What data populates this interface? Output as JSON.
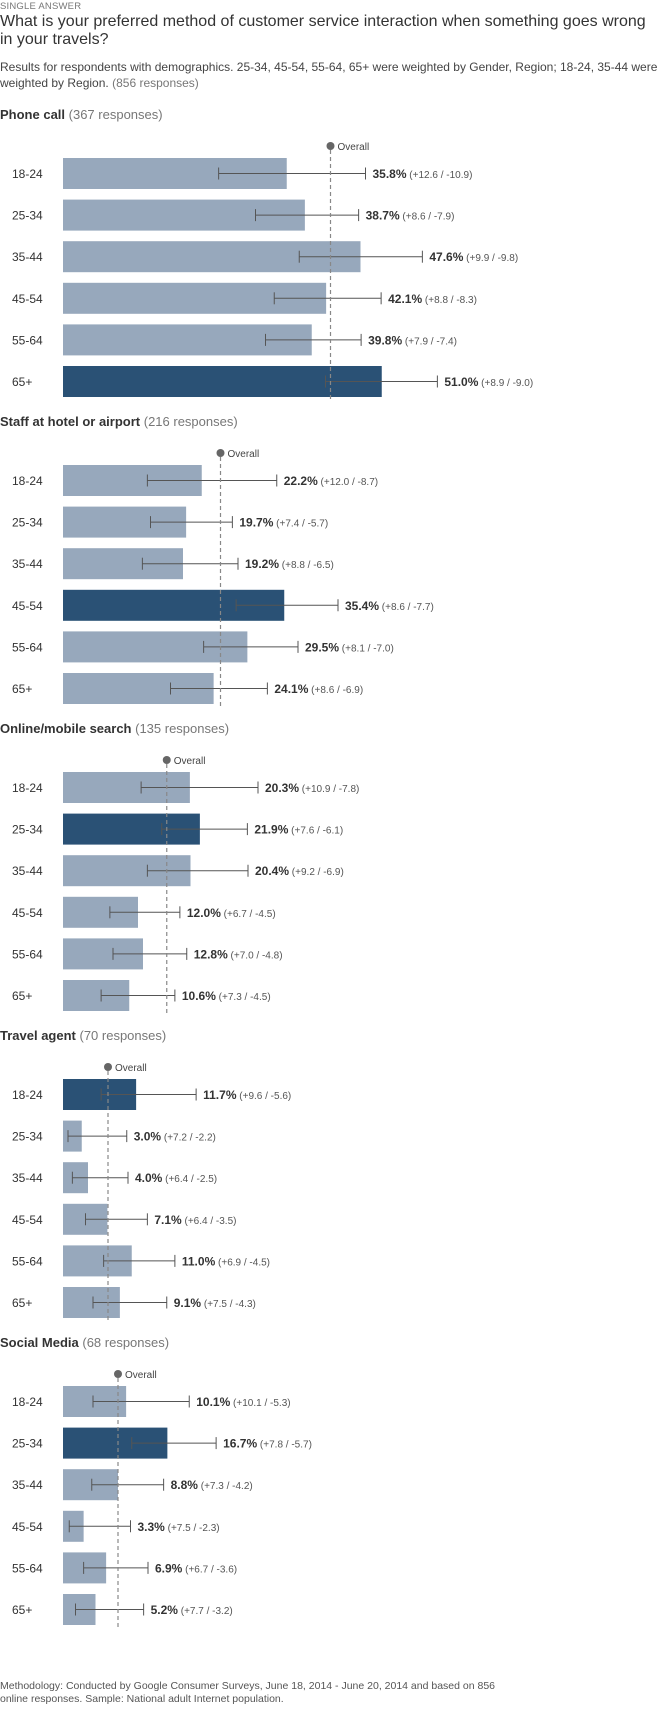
{
  "survey_type": "SINGLE ANSWER",
  "question": "What is your preferred method of customer service interaction when something goes wrong in your travels?",
  "subtitle_main": "Results for respondents with demographics. 25-34, 45-54, 55-64, 65+ were weighted by Gender, Region; 18-24, 35-44 were weighted by Region.",
  "subtitle_count": "(856 responses)",
  "overall_label": "Overall",
  "footer": "Methodology: Conducted by Google Consumer Surveys, June 18, 2014 - June 20, 2014 and based on 856 online responses. Sample: National adult Internet population.",
  "colors": {
    "bar": "#97a8bc",
    "highlight": "#2a5175",
    "overall_line": "#888888",
    "error_bar": "#555555"
  },
  "chart_data": {
    "type": "bar",
    "orientation": "horizontal",
    "grid": false,
    "unit": "%",
    "categories": [
      "18-24",
      "25-34",
      "35-44",
      "45-54",
      "55-64",
      "65+"
    ],
    "panels": [
      {
        "title": "Phone call",
        "responses": "(367 responses)",
        "overall": 42.8,
        "values": [
          35.8,
          38.7,
          47.6,
          42.1,
          39.8,
          51.0
        ],
        "plus": [
          12.6,
          8.6,
          9.9,
          8.8,
          7.9,
          8.9
        ],
        "minus": [
          10.9,
          7.9,
          9.8,
          8.3,
          7.4,
          9.0
        ],
        "labels": [
          "35.8%",
          "38.7%",
          "47.6%",
          "42.1%",
          "39.8%",
          "51.0%"
        ],
        "ci_labels": [
          "(+12.6 / -10.9)",
          "(+8.6 / -7.9)",
          "(+9.9 / -9.8)",
          "(+8.8 / -8.3)",
          "(+7.9 / -7.4)",
          "(+8.9 / -9.0)"
        ],
        "highlight": 5
      },
      {
        "title": "Staff at hotel or airport",
        "responses": "(216 responses)",
        "overall": 25.2,
        "values": [
          22.2,
          19.7,
          19.2,
          35.4,
          29.5,
          24.1
        ],
        "plus": [
          12.0,
          7.4,
          8.8,
          8.6,
          8.1,
          8.6
        ],
        "minus": [
          8.7,
          5.7,
          6.5,
          7.7,
          7.0,
          6.9
        ],
        "labels": [
          "22.2%",
          "19.7%",
          "19.2%",
          "35.4%",
          "29.5%",
          "24.1%"
        ],
        "ci_labels": [
          "(+12.0 / -8.7)",
          "(+7.4 / -5.7)",
          "(+8.8 / -6.5)",
          "(+8.6 / -7.7)",
          "(+8.1 / -7.0)",
          "(+8.6 / -6.9)"
        ],
        "highlight": 3
      },
      {
        "title": "Online/mobile search",
        "responses": "(135 responses)",
        "overall": 16.6,
        "values": [
          20.3,
          21.9,
          20.4,
          12.0,
          12.8,
          10.6
        ],
        "plus": [
          10.9,
          7.6,
          9.2,
          6.7,
          7.0,
          7.3
        ],
        "minus": [
          7.8,
          6.1,
          6.9,
          4.5,
          4.8,
          4.5
        ],
        "labels": [
          "20.3%",
          "21.9%",
          "20.4%",
          "12.0%",
          "12.8%",
          "10.6%"
        ],
        "ci_labels": [
          "(+10.9 / -7.8)",
          "(+7.6 / -6.1)",
          "(+9.2 / -6.9)",
          "(+6.7 / -4.5)",
          "(+7.0 / -4.8)",
          "(+7.3 / -4.5)"
        ],
        "highlight": 1
      },
      {
        "title": "Travel agent",
        "responses": "(70 responses)",
        "overall": 7.2,
        "values": [
          11.7,
          3.0,
          4.0,
          7.1,
          11.0,
          9.1
        ],
        "plus": [
          9.6,
          7.2,
          6.4,
          6.4,
          6.9,
          7.5
        ],
        "minus": [
          5.6,
          2.2,
          2.5,
          3.5,
          4.5,
          4.3
        ],
        "labels": [
          "11.7%",
          "3.0%",
          "4.0%",
          "7.1%",
          "11.0%",
          "9.1%"
        ],
        "ci_labels": [
          "(+9.6 / -5.6)",
          "(+7.2 / -2.2)",
          "(+6.4 / -2.5)",
          "(+6.4 / -3.5)",
          "(+6.9 / -4.5)",
          "(+7.5 / -4.3)"
        ],
        "highlight": 0
      },
      {
        "title": "Social Media",
        "responses": "(68 responses)",
        "overall": 8.8,
        "values": [
          10.1,
          16.7,
          8.8,
          3.3,
          6.9,
          5.2
        ],
        "plus": [
          10.1,
          7.8,
          7.3,
          7.5,
          6.7,
          7.7
        ],
        "minus": [
          5.3,
          5.7,
          4.2,
          2.3,
          3.6,
          3.2
        ],
        "labels": [
          "10.1%",
          "16.7%",
          "8.8%",
          "3.3%",
          "6.9%",
          "5.2%"
        ],
        "ci_labels": [
          "(+10.1 / -5.3)",
          "(+7.8 / -5.7)",
          "(+7.3 / -4.2)",
          "(+7.5 / -2.3)",
          "(+6.7 / -3.6)",
          "(+7.7 / -3.2)"
        ],
        "highlight": 1
      }
    ]
  }
}
